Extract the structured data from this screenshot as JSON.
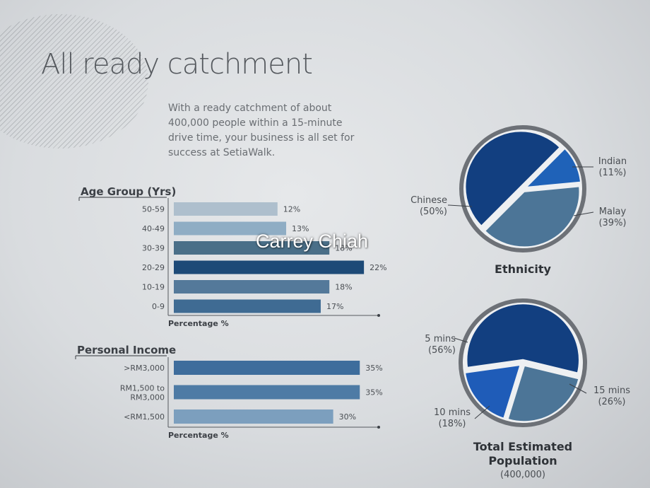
{
  "page": {
    "title": "All ready catchment",
    "intro_lines": [
      "With a ready catchment of about",
      "400,000 people within a 15-minute",
      "drive time, your business is all set for",
      "success at SetiaWalk."
    ],
    "watermark": "Carrey Chiah"
  },
  "colors": {
    "dark_blue": "#133f7e",
    "mid_blue": "#1f5db4",
    "steel_blue": "#4f7898",
    "bar_light": "#a9bccb"
  },
  "chart_data": [
    {
      "type": "bar",
      "orientation": "horizontal",
      "title": "Age Group (Yrs)",
      "xlabel": "Percentage %",
      "categories": [
        "50-59",
        "40-49",
        "30-39",
        "20-29",
        "10-19",
        "0-9"
      ],
      "values": [
        12,
        13,
        18,
        22,
        18,
        17
      ],
      "value_labels": [
        "12%",
        "13%",
        "18%",
        "22%",
        "18%",
        "17%"
      ],
      "bar_colors": [
        "#aebfcd",
        "#8fadc4",
        "#4a6f88",
        "#1d4a77",
        "#54799a",
        "#3f6b93"
      ],
      "xlim": [
        0,
        30
      ]
    },
    {
      "type": "bar",
      "orientation": "horizontal",
      "title": "Personal Income",
      "xlabel": "Percentage %",
      "categories": [
        [
          ">RM3,000"
        ],
        [
          "RM1,500 to",
          "RM3,000"
        ],
        [
          "<RM1,500"
        ]
      ],
      "values": [
        35,
        35,
        30
      ],
      "value_labels": [
        "35%",
        "35%",
        "30%"
      ],
      "bar_colors": [
        "#3e6d9c",
        "#4e7ba5",
        "#7c9fbe"
      ],
      "xlim": [
        0,
        48
      ]
    },
    {
      "type": "pie",
      "title": [
        "Ethnicity"
      ],
      "slices": [
        {
          "label": "Chinese",
          "pct_label": "(50%)",
          "value": 50,
          "color": "#123f80",
          "text_anchor": "end"
        },
        {
          "label": "Indian",
          "pct_label": "(11%)",
          "value": 11,
          "color": "#1f62b8",
          "text_anchor": "middle"
        },
        {
          "label": "Malay",
          "pct_label": "(39%)",
          "value": 39,
          "color": "#4c7597",
          "text_anchor": "middle"
        }
      ]
    },
    {
      "type": "pie",
      "title": [
        "Total Estimated",
        "Population"
      ],
      "subtitle": "(400,000)",
      "slices": [
        {
          "label": "5 mins",
          "pct_label": "(56%)",
          "value": 56,
          "color": "#123f80",
          "text_anchor": "end"
        },
        {
          "label": "15 mins",
          "pct_label": "(26%)",
          "value": 26,
          "color": "#4c7597",
          "text_anchor": "middle"
        },
        {
          "label": "10 mins",
          "pct_label": "(18%)",
          "value": 18,
          "color": "#1f5cb8",
          "text_anchor": "middle"
        }
      ]
    }
  ]
}
